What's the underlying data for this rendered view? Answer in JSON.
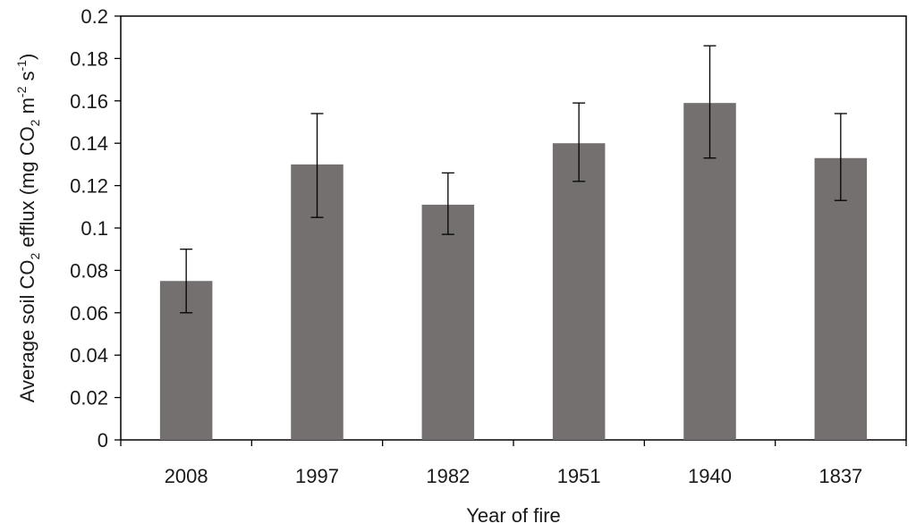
{
  "chart_data": {
    "type": "bar",
    "categories": [
      "2008",
      "1997",
      "1982",
      "1951",
      "1940",
      "1837"
    ],
    "values": [
      0.075,
      0.13,
      0.111,
      0.14,
      0.159,
      0.133
    ],
    "error_bars": {
      "lower": [
        0.06,
        0.105,
        0.097,
        0.122,
        0.133,
        0.113
      ],
      "upper": [
        0.09,
        0.154,
        0.126,
        0.159,
        0.186,
        0.154
      ]
    },
    "title": "",
    "xlabel": "Year of fire",
    "ylabel": {
      "part1": "Average soil CO",
      "sub1": "2",
      "part2": " efflux (mg CO",
      "sub2": "2",
      "part3": " m",
      "sup1": "-2",
      "part4": " s",
      "sup2": "-1",
      "part5": ")"
    },
    "ylim": [
      0,
      0.2
    ],
    "yticks": [
      "0",
      "0.02",
      "0.04",
      "0.06",
      "0.08",
      "0.1",
      "0.12",
      "0.14",
      "0.16",
      "0.18",
      "0.2"
    ],
    "grid": false,
    "bar_color": "#747070",
    "axis_color": "#000000"
  }
}
